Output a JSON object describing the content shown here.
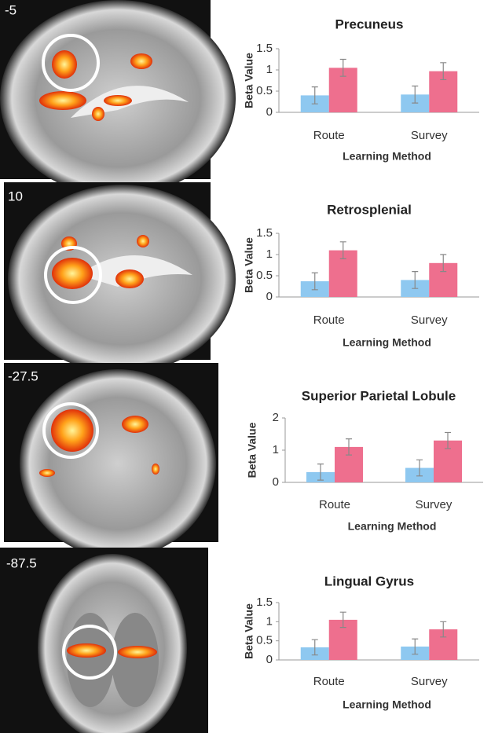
{
  "slices": [
    "-5",
    "10",
    "-27.5",
    "-87.5"
  ],
  "chart_data": [
    {
      "type": "bar",
      "title": "Precuneus",
      "x_label": "Learning Method",
      "y_label": "Beta Value",
      "categories": [
        "Route",
        "Survey"
      ],
      "ylim": [
        0,
        1.5
      ],
      "yticks": [
        0,
        0.5,
        1,
        1.5
      ],
      "grid": false,
      "series": [
        {
          "color": "#8ec8f0",
          "values": [
            0.4,
            0.42
          ],
          "errors": [
            0.2,
            0.2
          ]
        },
        {
          "color": "#ee6f8e",
          "values": [
            1.05,
            0.97
          ],
          "errors": [
            0.2,
            0.2
          ]
        }
      ]
    },
    {
      "type": "bar",
      "title": "Retrosplenial",
      "x_label": "Learning Method",
      "y_label": "Beta Value",
      "categories": [
        "Route",
        "Survey"
      ],
      "ylim": [
        0,
        1.5
      ],
      "yticks": [
        0,
        0.5,
        1,
        1.5
      ],
      "grid": false,
      "series": [
        {
          "color": "#8ec8f0",
          "values": [
            0.37,
            0.4
          ],
          "errors": [
            0.2,
            0.2
          ]
        },
        {
          "color": "#ee6f8e",
          "values": [
            1.1,
            0.8
          ],
          "errors": [
            0.2,
            0.2
          ]
        }
      ]
    },
    {
      "type": "bar",
      "title": "Superior Parietal Lobule",
      "x_label": "Learning Method",
      "y_label": "Beta Value",
      "categories": [
        "Route",
        "Survey"
      ],
      "ylim": [
        0,
        2
      ],
      "yticks": [
        0,
        1,
        2
      ],
      "grid": false,
      "series": [
        {
          "color": "#8ec8f0",
          "values": [
            0.32,
            0.45
          ],
          "errors": [
            0.25,
            0.25
          ]
        },
        {
          "color": "#ee6f8e",
          "values": [
            1.1,
            1.3
          ],
          "errors": [
            0.25,
            0.25
          ]
        }
      ]
    },
    {
      "type": "bar",
      "title": "Lingual Gyrus",
      "x_label": "Learning Method",
      "y_label": "Beta Value",
      "categories": [
        "Route",
        "Survey"
      ],
      "ylim": [
        0,
        1.5
      ],
      "yticks": [
        0,
        0.5,
        1,
        1.5
      ],
      "grid": false,
      "series": [
        {
          "color": "#8ec8f0",
          "values": [
            0.33,
            0.35
          ],
          "errors": [
            0.2,
            0.2
          ]
        },
        {
          "color": "#ee6f8e",
          "values": [
            1.05,
            0.8
          ],
          "errors": [
            0.2,
            0.2
          ]
        }
      ]
    }
  ]
}
